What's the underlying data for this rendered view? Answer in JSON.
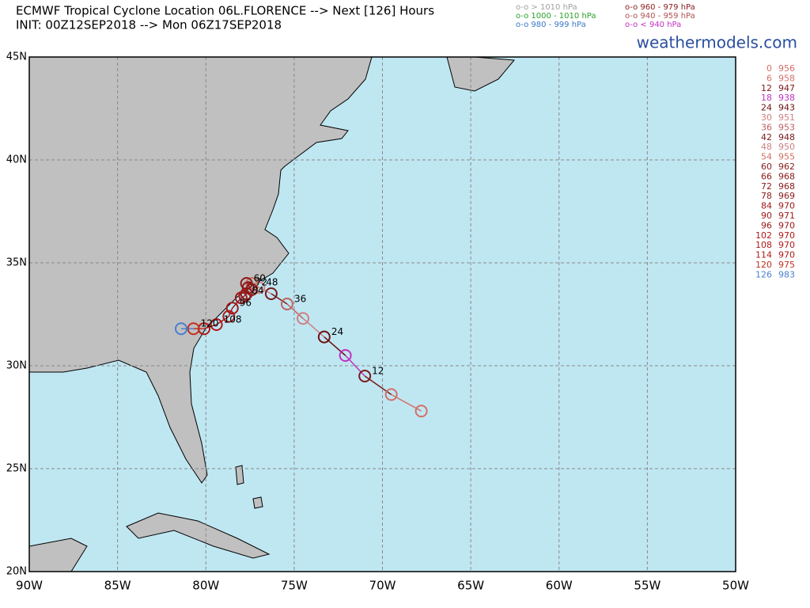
{
  "header": {
    "title": "ECMWF Tropical Cyclone Location 06L.FLORENCE --> Next [126] Hours",
    "init": "INIT: 00Z12SEP2018 --> Mon 06Z17SEP2018",
    "site": "weathermodels.com"
  },
  "legend": [
    {
      "text": "o-o > 1010 hPa",
      "color": "#a0a0a0"
    },
    {
      "text": "o-o 1000 - 1010 hPa",
      "color": "#2ca02c"
    },
    {
      "text": "o-o 980 - 999 hPa",
      "color": "#3a78c8"
    },
    {
      "text": "o-o 960 - 979 hPa",
      "color": "#8b1a1a"
    },
    {
      "text": "o-o 940 - 959 hPa",
      "color": "#b05050"
    },
    {
      "text": "o-o < 940 hPa",
      "color": "#c030c0"
    }
  ],
  "map": {
    "lat_ticks": [
      {
        "value": 45,
        "label": "45N"
      },
      {
        "value": 40,
        "label": "40N"
      },
      {
        "value": 35,
        "label": "35N"
      },
      {
        "value": 30,
        "label": "30N"
      },
      {
        "value": 25,
        "label": "25N"
      },
      {
        "value": 20,
        "label": "20N"
      }
    ],
    "lon_ticks": [
      {
        "value": -90,
        "label": "90W"
      },
      {
        "value": -85,
        "label": "85W"
      },
      {
        "value": -80,
        "label": "80W"
      },
      {
        "value": -75,
        "label": "75W"
      },
      {
        "value": -70,
        "label": "70W"
      },
      {
        "value": -65,
        "label": "65W"
      },
      {
        "value": -60,
        "label": "60W"
      },
      {
        "value": -55,
        "label": "55W"
      },
      {
        "value": -50,
        "label": "50W"
      }
    ]
  },
  "points": [
    {
      "hour": 0,
      "pressure": 956,
      "lon": -67.8,
      "lat": 27.8,
      "color": "#d4706a"
    },
    {
      "hour": 6,
      "pressure": 958,
      "lon": -69.5,
      "lat": 28.6,
      "color": "#d4706a"
    },
    {
      "hour": 12,
      "pressure": 947,
      "lon": -71.0,
      "lat": 29.5,
      "color": "#7a1a1a"
    },
    {
      "hour": 18,
      "pressure": 938,
      "lon": -72.1,
      "lat": 30.5,
      "color": "#c030c0"
    },
    {
      "hour": 24,
      "pressure": 943,
      "lon": -73.3,
      "lat": 31.4,
      "color": "#6a1010"
    },
    {
      "hour": 30,
      "pressure": 951,
      "lon": -74.5,
      "lat": 32.3,
      "color": "#d08080"
    },
    {
      "hour": 36,
      "pressure": 953,
      "lon": -75.4,
      "lat": 33.0,
      "color": "#c06060"
    },
    {
      "hour": 42,
      "pressure": 948,
      "lon": -76.3,
      "lat": 33.5,
      "color": "#7a1a1a"
    },
    {
      "hour": 48,
      "pressure": 950,
      "lon": -77.0,
      "lat": 33.8,
      "color": "#d08080"
    },
    {
      "hour": 54,
      "pressure": 955,
      "lon": -77.4,
      "lat": 34.0,
      "color": "#d07060"
    },
    {
      "hour": 60,
      "pressure": 962,
      "lon": -77.7,
      "lat": 34.0,
      "color": "#8b1a1a"
    },
    {
      "hour": 66,
      "pressure": 968,
      "lon": -77.4,
      "lat": 33.7,
      "color": "#8b1a1a"
    },
    {
      "hour": 72,
      "pressure": 968,
      "lon": -77.6,
      "lat": 33.8,
      "color": "#8b1a1a"
    },
    {
      "hour": 78,
      "pressure": 969,
      "lon": -77.7,
      "lat": 33.5,
      "color": "#8b1a1a"
    },
    {
      "hour": 84,
      "pressure": 970,
      "lon": -77.8,
      "lat": 33.4,
      "color": "#a01818"
    },
    {
      "hour": 90,
      "pressure": 971,
      "lon": -78.0,
      "lat": 33.3,
      "color": "#a01818"
    },
    {
      "hour": 96,
      "pressure": 970,
      "lon": -78.5,
      "lat": 32.8,
      "color": "#a01818"
    },
    {
      "hour": 102,
      "pressure": 970,
      "lon": -78.7,
      "lat": 32.4,
      "color": "#b01818"
    },
    {
      "hour": 108,
      "pressure": 970,
      "lon": -79.4,
      "lat": 32.0,
      "color": "#b01818"
    },
    {
      "hour": 114,
      "pressure": 970,
      "lon": -80.1,
      "lat": 31.8,
      "color": "#b01818"
    },
    {
      "hour": 120,
      "pressure": 975,
      "lon": -80.7,
      "lat": 31.8,
      "color": "#c03020"
    },
    {
      "hour": 126,
      "pressure": 983,
      "lon": -81.4,
      "lat": 31.8,
      "color": "#4a7fd0"
    }
  ]
}
